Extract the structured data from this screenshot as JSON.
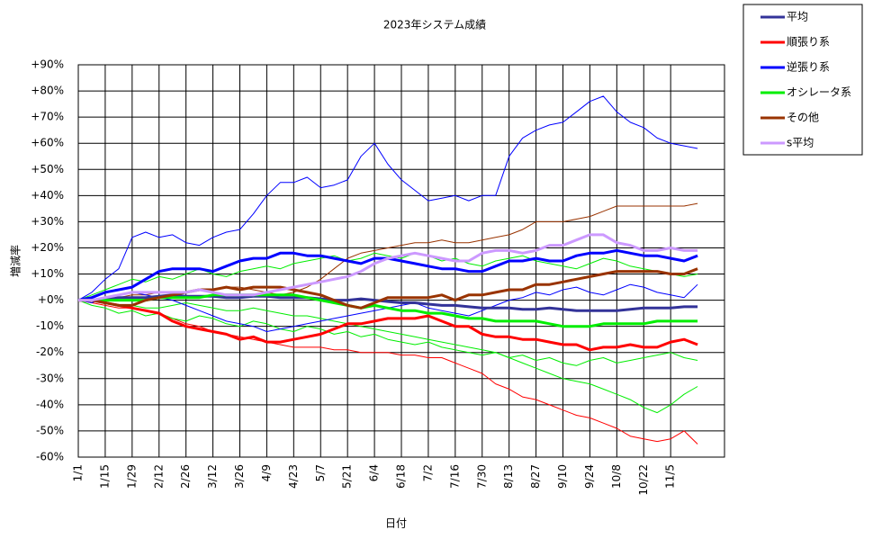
{
  "chart_data": {
    "type": "line",
    "title": "2023年システム成績",
    "x_label": "日付",
    "y_label": "増減率",
    "categories": [
      "1/1",
      null,
      "1/15",
      null,
      "1/29",
      null,
      "2/12",
      null,
      "2/26",
      null,
      "3/12",
      null,
      "3/26",
      null,
      "4/9",
      null,
      "4/23",
      null,
      "5/7",
      null,
      "5/21",
      null,
      "6/4",
      null,
      "6/18",
      null,
      "7/2",
      null,
      "7/16",
      null,
      "7/30",
      null,
      "8/13",
      null,
      "8/27",
      null,
      "9/10",
      null,
      "9/24",
      null,
      "10/8",
      null,
      "10/22",
      null,
      "11/5",
      null,
      null,
      null,
      null
    ],
    "ylim": [
      -60,
      90
    ],
    "yticks": [
      {
        "value": -60,
        "label": "-60%"
      },
      {
        "value": -50,
        "label": "-50%"
      },
      {
        "value": -40,
        "label": "-40%"
      },
      {
        "value": -30,
        "label": "-30%"
      },
      {
        "value": -20,
        "label": "-20%"
      },
      {
        "value": -10,
        "label": "-10%"
      },
      {
        "value": 0,
        "label": "+0%"
      },
      {
        "value": 10,
        "label": "+10%"
      },
      {
        "value": 20,
        "label": "+20%"
      },
      {
        "value": 30,
        "label": "+30%"
      },
      {
        "value": 40,
        "label": "+40%"
      },
      {
        "value": 50,
        "label": "+50%"
      },
      {
        "value": 60,
        "label": "+60%"
      },
      {
        "value": 70,
        "label": "+70%"
      },
      {
        "value": 80,
        "label": "+80%"
      },
      {
        "value": 90,
        "label": "+90%"
      }
    ],
    "grid": true,
    "legend": "outside-right",
    "series": [
      {
        "color": "#0000ff",
        "values": [
          0,
          3,
          8,
          12,
          24,
          26,
          24,
          25,
          22,
          21,
          24,
          26,
          27,
          33,
          40,
          45,
          45,
          47,
          43,
          44,
          46,
          55,
          60,
          52,
          46,
          42,
          38,
          39,
          40,
          38,
          40,
          40,
          55,
          62,
          65,
          67,
          68,
          72,
          76,
          78,
          72,
          68,
          66,
          62,
          60,
          59,
          58,
          null,
          null
        ]
      },
      {
        "color": "#993300",
        "values": [
          0,
          0,
          1,
          1,
          2,
          2,
          3,
          3,
          3,
          4,
          4,
          5,
          5,
          4,
          3,
          2,
          3,
          5,
          8,
          12,
          16,
          18,
          19,
          20,
          21,
          22,
          22,
          23,
          22,
          22,
          23,
          24,
          25,
          27,
          30,
          30,
          30,
          31,
          32,
          34,
          36,
          36,
          36,
          36,
          36,
          36,
          37,
          null,
          null
        ]
      },
      {
        "color": "#ff0000",
        "values": [
          0,
          -1,
          -2,
          -3,
          -3,
          -4,
          -5,
          -7,
          -9,
          -10,
          -12,
          -13,
          -14,
          -15,
          -16,
          -17,
          -18,
          -18,
          -18,
          -19,
          -19,
          -20,
          -20,
          -20,
          -21,
          -21,
          -22,
          -22,
          -24,
          -26,
          -28,
          -32,
          -34,
          -37,
          -38,
          -40,
          -42,
          -44,
          -45,
          -47,
          -49,
          -52,
          -53,
          -54,
          -53,
          -50,
          -55,
          null,
          null
        ]
      },
      {
        "color": "#00ee00",
        "values": [
          0,
          0,
          -1,
          -2,
          -2,
          -3,
          -3,
          -2,
          -1,
          -2,
          -3,
          -4,
          -4,
          -3,
          -4,
          -5,
          -6,
          -6,
          -7,
          -8,
          -9,
          -10,
          -11,
          -12,
          -13,
          -14,
          -15,
          -16,
          -17,
          -18,
          -19,
          -20,
          -22,
          -24,
          -26,
          -28,
          -30,
          -31,
          -32,
          -34,
          -36,
          -38,
          -41,
          -43,
          -40,
          -36,
          -33,
          null,
          null
        ]
      },
      {
        "color": "#00ee00",
        "values": [
          0,
          2,
          4,
          6,
          8,
          7,
          9,
          8,
          10,
          12,
          10,
          9,
          11,
          12,
          13,
          12,
          14,
          15,
          16,
          17,
          15,
          16,
          18,
          17,
          16,
          18,
          17,
          15,
          16,
          14,
          13,
          15,
          16,
          17,
          15,
          14,
          13,
          12,
          14,
          16,
          15,
          13,
          12,
          11,
          10,
          9,
          10,
          null,
          null
        ]
      },
      {
        "color": "#00ee00",
        "values": [
          0,
          -2,
          -3,
          -5,
          -4,
          -6,
          -5,
          -7,
          -8,
          -6,
          -7,
          -9,
          -10,
          -8,
          -9,
          -11,
          -12,
          -10,
          -11,
          -13,
          -12,
          -14,
          -13,
          -15,
          -16,
          -17,
          -16,
          -18,
          -19,
          -20,
          -21,
          -20,
          -22,
          -21,
          -23,
          -22,
          -24,
          -25,
          -23,
          -22,
          -24,
          -23,
          -22,
          -21,
          -20,
          -22,
          -23,
          null,
          null
        ]
      },
      {
        "color": "#0000ff",
        "values": [
          0,
          -1,
          1,
          2,
          3,
          2,
          1,
          0,
          -2,
          -4,
          -6,
          -8,
          -9,
          -10,
          -12,
          -11,
          -10,
          -9,
          -8,
          -7,
          -6,
          -5,
          -4,
          -3,
          -2,
          -1,
          -3,
          -4,
          -5,
          -6,
          -4,
          -2,
          0,
          1,
          3,
          2,
          4,
          5,
          3,
          2,
          4,
          6,
          5,
          3,
          2,
          1,
          6,
          null,
          null
        ]
      },
      {
        "name": "平均",
        "color": "#333399",
        "values": [
          0,
          0,
          0.5,
          1,
          1,
          1,
          1.5,
          2,
          1.5,
          1.5,
          1.5,
          1,
          1,
          1.5,
          1.5,
          1,
          1,
          1,
          0.5,
          0,
          0,
          0.5,
          0,
          -0.5,
          -1,
          -1,
          -1.5,
          -2,
          -2,
          -2.5,
          -3,
          -3,
          -3,
          -3.5,
          -3.5,
          -3,
          -3.5,
          -4,
          -4,
          -4,
          -4,
          -3.5,
          -3,
          -3,
          -3,
          -2.5,
          -2.5,
          null,
          null
        ]
      },
      {
        "name": "順張り系",
        "color": "#ff0000",
        "values": [
          0,
          0,
          -1,
          -2,
          -3,
          -4,
          -5,
          -8,
          -10,
          -11,
          -12,
          -13,
          -15,
          -14,
          -16,
          -16,
          -15,
          -14,
          -13,
          -11,
          -9,
          -9,
          -8,
          -7,
          -7,
          -7,
          -6,
          -8,
          -10,
          -10,
          -13,
          -14,
          -14,
          -15,
          -15,
          -16,
          -17,
          -17,
          -19,
          -18,
          -18,
          -17,
          -18,
          -18,
          -16,
          -15,
          -17,
          null,
          null
        ]
      },
      {
        "name": "逆張り系",
        "color": "#0000ff",
        "values": [
          0,
          1,
          3,
          4,
          5,
          8,
          11,
          12,
          12,
          12,
          11,
          13,
          15,
          16,
          16,
          18,
          18,
          17,
          17,
          16,
          15,
          14,
          16,
          16,
          15,
          14,
          13,
          12,
          12,
          11,
          11,
          13,
          15,
          15,
          16,
          15,
          15,
          17,
          18,
          18,
          19,
          18,
          17,
          17,
          16,
          15,
          17,
          null,
          null
        ]
      },
      {
        "name": "オシレータ系",
        "color": "#00ee00",
        "values": [
          0,
          0,
          0,
          0,
          0,
          0,
          1,
          1,
          1,
          1,
          2,
          2,
          2,
          2,
          2,
          2,
          2,
          1,
          0,
          -1,
          -2,
          -3,
          -2,
          -3,
          -4,
          -4,
          -5,
          -5,
          -6,
          -7,
          -7,
          -8,
          -8,
          -8,
          -8,
          -9,
          -10,
          -10,
          -10,
          -9,
          -9,
          -9,
          -9,
          -8,
          -8,
          -8,
          -8,
          null,
          null
        ]
      },
      {
        "name": "その他",
        "color": "#993300",
        "values": [
          0,
          0,
          -1,
          -2,
          -2,
          0,
          1,
          2,
          3,
          4,
          4,
          5,
          4,
          5,
          5,
          5,
          4,
          3,
          2,
          0,
          -2,
          -3,
          -1,
          1,
          1,
          1,
          1,
          2,
          0,
          2,
          2,
          3,
          4,
          4,
          6,
          6,
          7,
          8,
          9,
          10,
          11,
          11,
          11,
          11,
          10,
          10,
          12,
          null,
          null
        ]
      },
      {
        "name": "s平均",
        "color": "#cc99ff",
        "values": [
          0,
          0,
          1,
          2,
          3,
          3,
          3,
          3,
          3,
          4,
          3,
          2,
          2,
          2,
          3,
          4,
          5,
          6,
          7,
          8,
          9,
          11,
          14,
          16,
          17,
          18,
          17,
          16,
          15,
          15,
          18,
          19,
          19,
          18,
          19,
          21,
          21,
          23,
          25,
          25,
          22,
          21,
          19,
          19,
          20,
          19,
          19,
          null,
          null
        ]
      }
    ]
  }
}
